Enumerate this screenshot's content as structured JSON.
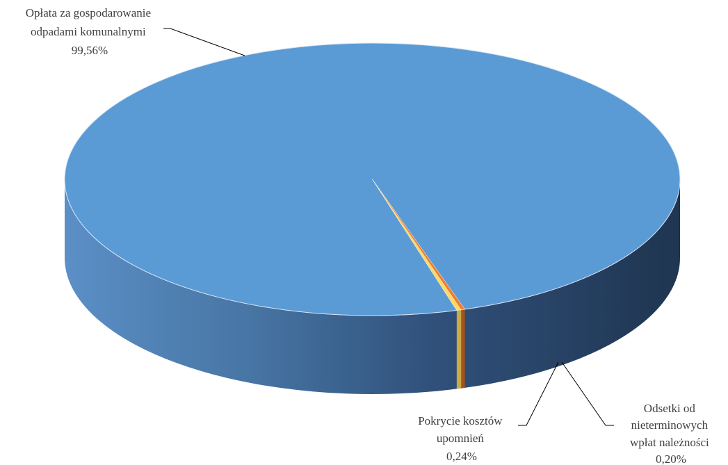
{
  "chart_data": {
    "type": "pie",
    "style": "3d",
    "title": "",
    "slices": [
      {
        "label_lines": [
          "Opłata za gospodarowanie",
          "odpadami komunalnymi"
        ],
        "value_label": "99,56%",
        "value": 99.56,
        "color": "#5b9bd5"
      },
      {
        "label_lines": [
          "Pokrycie kosztów",
          "upomnień"
        ],
        "value_label": "0,24%",
        "value": 0.24,
        "color": "#ffd966"
      },
      {
        "label_lines": [
          "Odsetki od",
          "nieterminowych",
          "wpłat należności"
        ],
        "value_label": "0,20%",
        "value": 0.2,
        "color": "#ed7d31"
      }
    ],
    "legend": "none"
  }
}
